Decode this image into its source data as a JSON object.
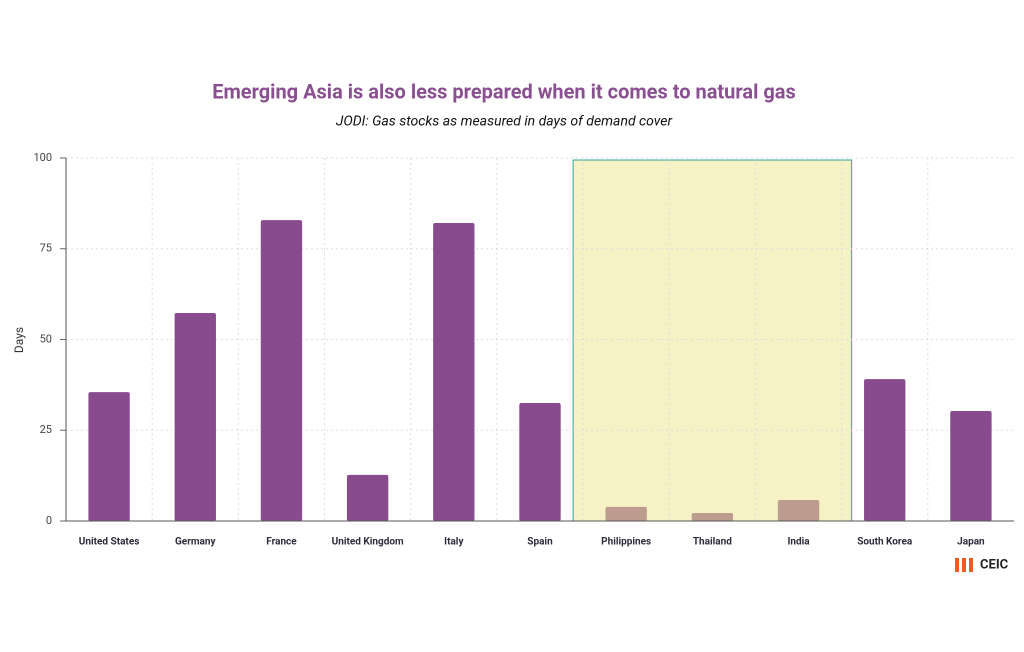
{
  "chart_data": {
    "type": "bar",
    "title": "Emerging Asia is also less prepared when it comes to natural gas",
    "subtitle": "JODI: Gas stocks as measured in days of demand cover",
    "y_label": "Days",
    "categories": [
      "United States",
      "Germany",
      "France",
      "United Kingdom",
      "Italy",
      "Spain",
      "Philippines",
      "Thailand",
      "India",
      "South Korea",
      "Japan"
    ],
    "values": [
      35.5,
      57.3,
      82.9,
      12.7,
      82.1,
      32.5,
      3.9,
      2.2,
      5.8,
      39.1,
      30.3
    ],
    "colors": [
      "#874b8e",
      "#874b8e",
      "#874b8e",
      "#874b8e",
      "#874b8e",
      "#874b8e",
      "#bb9c8f",
      "#bb9c8f",
      "#bb9c8f",
      "#874b8e",
      "#874b8e"
    ],
    "ylim": [
      0,
      100
    ],
    "yticks": [
      0,
      25,
      50,
      75,
      100
    ],
    "grid": true,
    "source_logo": "CEIC"
  }
}
